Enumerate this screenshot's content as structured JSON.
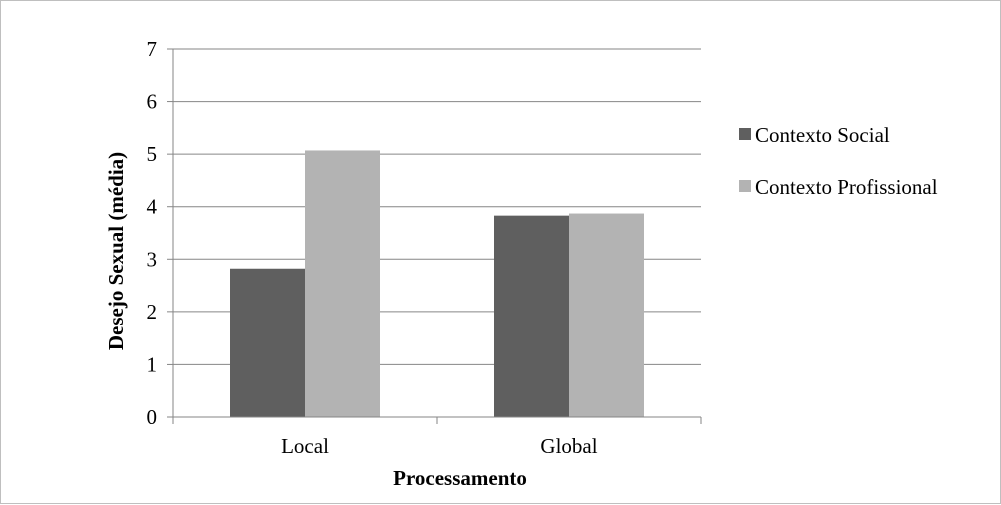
{
  "chart_data": {
    "type": "bar",
    "title": "",
    "xlabel": "Processamento",
    "ylabel": "Desejo Sexual (média)",
    "categories": [
      "Local",
      "Global"
    ],
    "series": [
      {
        "name": "Contexto Social",
        "values": [
          2.82,
          3.83
        ],
        "color": "#5f5f5f"
      },
      {
        "name": "Contexto Profissional",
        "values": [
          5.07,
          3.87
        ],
        "color": "#b3b3b3"
      }
    ],
    "ylim": [
      0,
      7
    ],
    "yticks": [
      0,
      1,
      2,
      3,
      4,
      5,
      6,
      7
    ],
    "grid": true,
    "legend": "right"
  }
}
